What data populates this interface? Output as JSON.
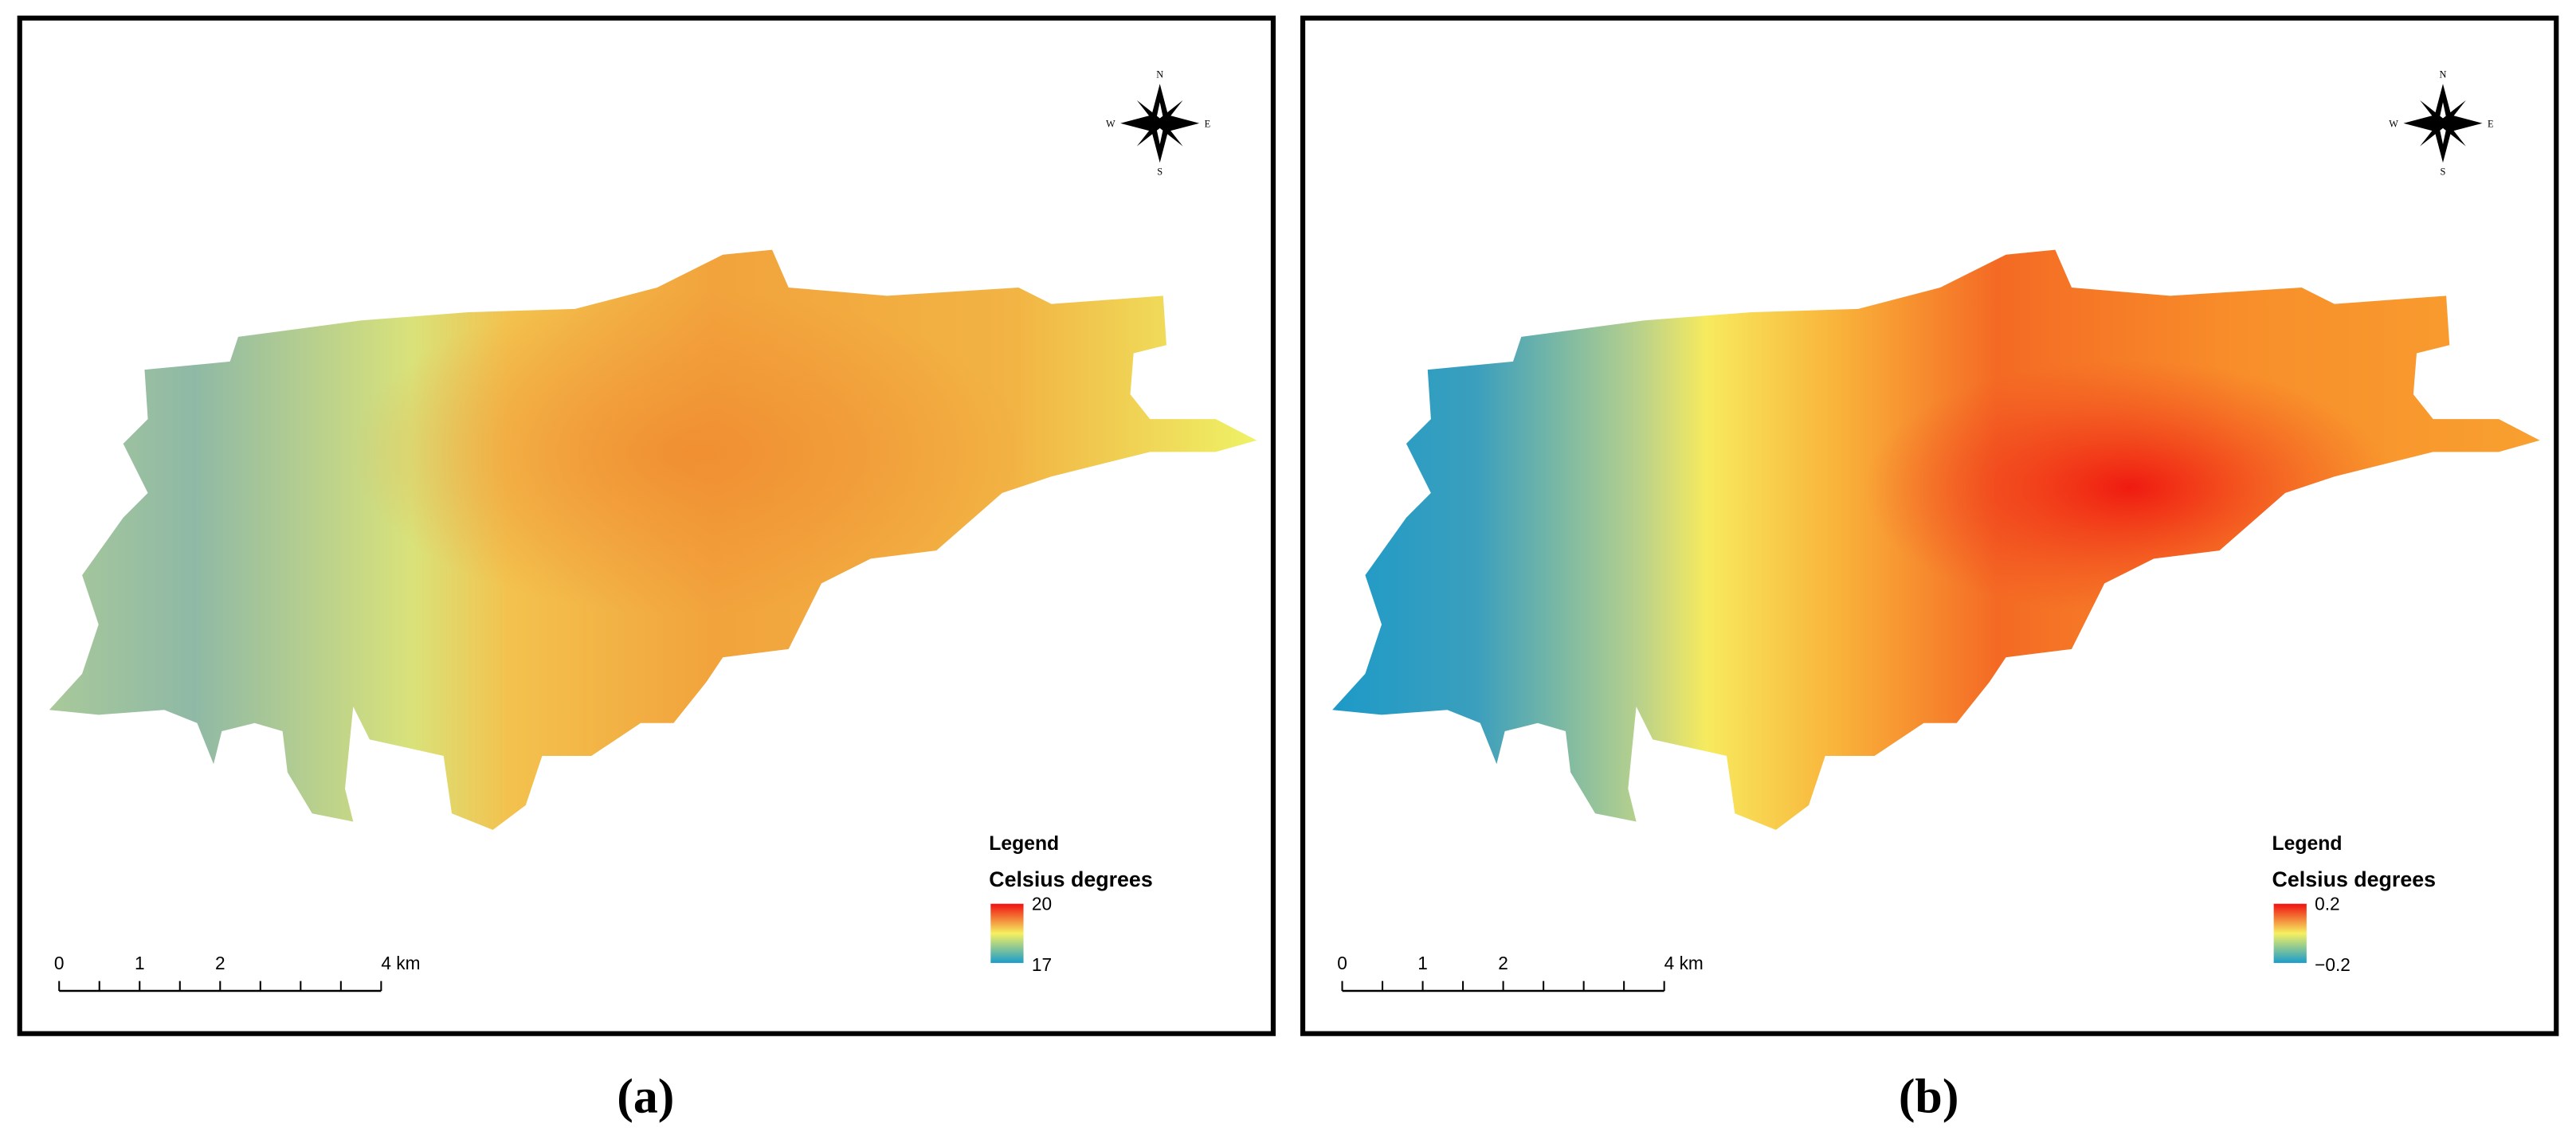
{
  "panels": [
    {
      "label": "(a)",
      "compass": {
        "n": "N",
        "e": "E",
        "s": "S",
        "w": "W"
      },
      "legend": {
        "title": "Legend",
        "unit": "Celsius degrees",
        "max": "20",
        "min": "17"
      },
      "scale_bar": [
        "0",
        "1",
        "2",
        "4 km"
      ]
    },
    {
      "label": "(b)",
      "compass": {
        "n": "N",
        "e": "E",
        "s": "S",
        "w": "W"
      },
      "legend": {
        "title": "Legend",
        "unit": "Celsius degrees",
        "max": "0.2",
        "min": "−0.2"
      },
      "scale_bar": [
        "0",
        "1",
        "2",
        "4 km"
      ]
    }
  ]
}
